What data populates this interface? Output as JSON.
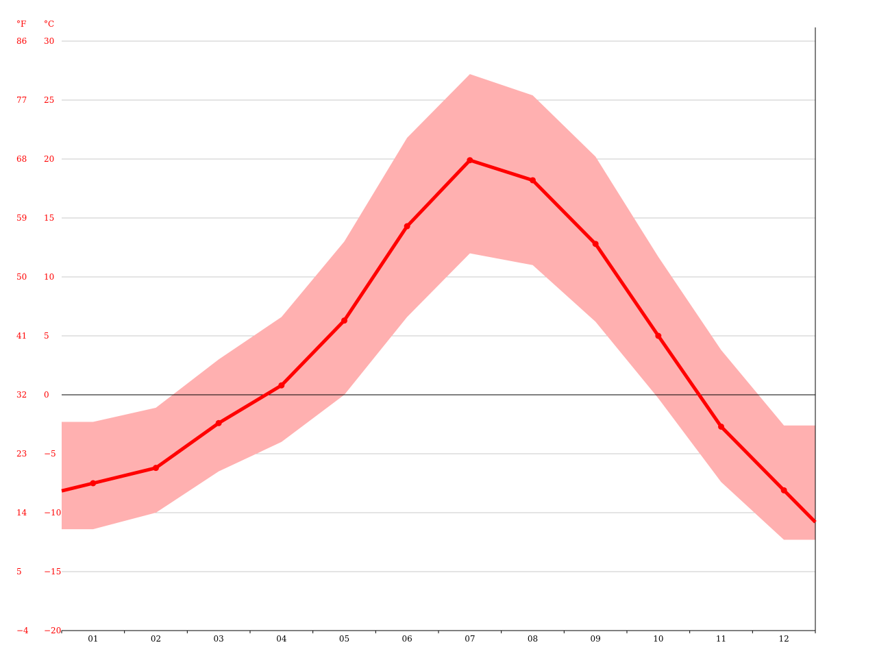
{
  "chart_data": {
    "type": "line",
    "title": "",
    "xlabel": "",
    "ylabel": "",
    "units": {
      "fahrenheit": "°F",
      "celsius": "°C"
    },
    "categories": [
      "01",
      "02",
      "03",
      "04",
      "05",
      "06",
      "07",
      "08",
      "09",
      "10",
      "11",
      "12"
    ],
    "y_ticks_celsius": [
      "30",
      "25",
      "20",
      "15",
      "10",
      "5",
      "0",
      "−5",
      "−10",
      "−15",
      "−20"
    ],
    "y_ticks_fahrenheit": [
      "86",
      "77",
      "68",
      "59",
      "50",
      "41",
      "32",
      "23",
      "14",
      "5",
      "−4"
    ],
    "ylim": [
      -20,
      30
    ],
    "grid": true,
    "series": [
      {
        "values": [
          -7.5,
          -6.2,
          -2.4,
          0.8,
          6.3,
          14.3,
          19.9,
          18.2,
          12.8,
          5.0,
          -2.7,
          -8.1
        ],
        "color": "#ff0000"
      }
    ],
    "band": {
      "upper": [
        -2.3,
        -1.1,
        3.0,
        6.6,
        13.0,
        21.8,
        27.2,
        25.4,
        20.2,
        11.7,
        3.8,
        -2.6
      ],
      "lower": [
        -11.4,
        -10.0,
        -6.5,
        -4.0,
        0.0,
        6.6,
        12.0,
        11.0,
        6.2,
        -0.3,
        -7.4,
        -12.3
      ],
      "color": "#ffb0b0"
    },
    "zero_line": true
  }
}
